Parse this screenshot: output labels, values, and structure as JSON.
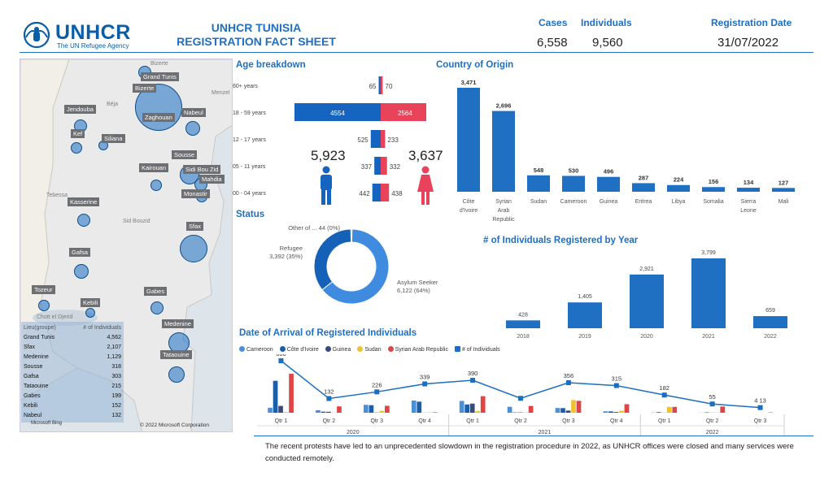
{
  "header": {
    "org_name": "UNHCR",
    "org_tagline": "The UN Refugee Agency",
    "title_line1": "UNHCR TUNISIA",
    "title_line2": "REGISTRATION FACT SHEET",
    "cases_label": "Cases",
    "cases_value": "6,558",
    "individuals_label": "Individuals",
    "individuals_value": "9,560",
    "reg_date_label": "Registration Date",
    "reg_date_value": "31/07/2022"
  },
  "colors": {
    "brand_blue": "#1f6fc2",
    "male_blue": "#1565c0",
    "female_red": "#e8435a",
    "cameroon": "#4a90d9",
    "cote_divoire": "#1a5fa8",
    "guinea": "#3a4a7a",
    "sudan": "#f2c12e",
    "syria": "#e04545",
    "individuals_line": "#1a6fc2"
  },
  "map": {
    "labels": [
      "Grand Tunis",
      "Bizerte",
      "Nabeul",
      "Jendouba",
      "Zaghouan",
      "Kef",
      "Siliana",
      "Sousse",
      "Kairouan",
      "Sidi Bou Zid",
      "Mahdia",
      "Monastir",
      "Kasserine",
      "Sfax",
      "Gafsa",
      "Tozeur",
      "Gabes",
      "Kebili",
      "Medenine",
      "Tataouine"
    ],
    "geo_text": [
      "Bizerte",
      "Bizerte",
      "Menzel",
      "Béja",
      "Jendouba",
      "Kef",
      "Siliana",
      "Kairouan",
      "Tebessa",
      "Sid Bouzid",
      "Gafsa",
      "Tozeur",
      "Chott el Djerid",
      "Gabès",
      "Médenine",
      "Sfax"
    ],
    "table_header_left": "Lieu(groupe)",
    "table_header_right": "# of Individuals",
    "table_rows": [
      {
        "name": "Grand Tunis",
        "value": "4,562"
      },
      {
        "name": "Sfax",
        "value": "2,107"
      },
      {
        "name": "Medenine",
        "value": "1,129"
      },
      {
        "name": "Sousse",
        "value": "318"
      },
      {
        "name": "Gafsa",
        "value": "303"
      },
      {
        "name": "Tataouine",
        "value": "215"
      },
      {
        "name": "Gabes",
        "value": "199"
      },
      {
        "name": "Kebili",
        "value": "152"
      },
      {
        "name": "Nabeul",
        "value": "132"
      }
    ],
    "credit": "© 2022 Microsoft Corporation",
    "bing": "Microsoft Bing"
  },
  "sections": {
    "age": "Age breakdown",
    "country": "Country of Origin",
    "status": "Status",
    "by_year": "# of Individuals Registered by Year",
    "arrival": "Date of Arrival of Registered Individuals"
  },
  "gender": {
    "male_total": "5,923",
    "female_total": "3,637"
  },
  "footer_note": "The recent protests have led to an unprecedented slowdown in the registration procedure in 2022, as UNHCR offices were closed and many services were conducted remotely.",
  "chart_data": [
    {
      "type": "bar",
      "title": "Age breakdown",
      "categories": [
        "60+ years",
        "18 - 59 years",
        "12 - 17 years",
        "05 - 11 years",
        "00 - 04 years"
      ],
      "series": [
        {
          "name": "Male",
          "values": [
            65,
            4554,
            525,
            337,
            442
          ]
        },
        {
          "name": "Female",
          "values": [
            70,
            2564,
            233,
            332,
            438
          ]
        }
      ]
    },
    {
      "type": "bar",
      "title": "Country of Origin",
      "categories": [
        "Côte d'Ivoire",
        "Syrian Arab Republic",
        "Sudan",
        "Cameroon",
        "Guinea",
        "Eritrea",
        "Libya",
        "Somalia",
        "Sierra Leone",
        "Mali"
      ],
      "values": [
        3471,
        2696,
        548,
        530,
        496,
        287,
        224,
        156,
        134,
        127
      ],
      "value_labels": [
        "3,471",
        "2,696",
        "548",
        "530",
        "496",
        "287",
        "224",
        "156",
        "134",
        "127"
      ]
    },
    {
      "type": "pie",
      "title": "Status",
      "categories": [
        "Asylum Seeker",
        "Refugee",
        "Other of..."
      ],
      "values": [
        6122,
        3392,
        44
      ],
      "slice_labels": [
        "Asylum Seeker\n6,122 (64%)",
        "Refugee\n3,392 (35%)",
        "Other of ... 44 (0%)"
      ]
    },
    {
      "type": "bar",
      "title": "# of Individuals Registered by Year",
      "categories": [
        "2018",
        "2019",
        "2020",
        "2021",
        "2022"
      ],
      "values": [
        428,
        1405,
        2921,
        3799,
        659
      ],
      "value_labels": [
        "428",
        "1,405",
        "2,921",
        "3,799",
        "659"
      ]
    },
    {
      "type": "bar",
      "title": "Date of Arrival of Registered Individuals",
      "categories": [
        "Qtr 1",
        "Qtr 2",
        "Qtr 3",
        "Qtr 4",
        "Qtr 1",
        "Qtr 2",
        "Qtr 3",
        "Qtr 4",
        "Qtr 1",
        "Qtr 2",
        "Qtr 3"
      ],
      "years": [
        {
          "label": "2020",
          "span": 4
        },
        {
          "label": "2021",
          "span": 4
        },
        {
          "label": "2022",
          "span": 3
        }
      ],
      "series": [
        {
          "name": "Cameroon",
          "values": [
            41,
            21,
            65,
            100,
            97,
            49,
            39,
            12,
            2,
            1,
            0
          ]
        },
        {
          "name": "Côte d'Ivoire",
          "values": [
            262,
            9,
            62,
            91,
            68,
            3,
            38,
            11,
            5,
            3,
            0
          ]
        },
        {
          "name": "Guinea",
          "values": [
            56,
            8,
            2,
            1,
            75,
            3,
            18,
            6,
            1,
            1,
            0
          ]
        },
        {
          "name": "Sudan",
          "values": [
            7,
            2,
            16,
            3,
            14,
            3,
            104,
            16,
            48,
            2,
            0
          ]
        },
        {
          "name": "Syrian Arab Republic",
          "values": [
            320,
            52,
            57,
            4,
            136,
            56,
            98,
            70,
            48,
            51,
            3
          ]
        },
        {
          "name": "# of Individuals",
          "values": [
            666,
            132,
            226,
            339,
            390,
            135,
            356,
            315,
            182,
            55,
            4
          ]
        }
      ],
      "line_labels": [
        "666",
        "132",
        "226",
        "339",
        "390",
        "",
        "356",
        "315",
        "182",
        "55",
        "4 13"
      ]
    }
  ],
  "legend": [
    "Cameroon",
    "Côte d'Ivoire",
    "Guinea",
    "Sudan",
    "Syrian Arab Republic",
    "# of Individuals"
  ]
}
